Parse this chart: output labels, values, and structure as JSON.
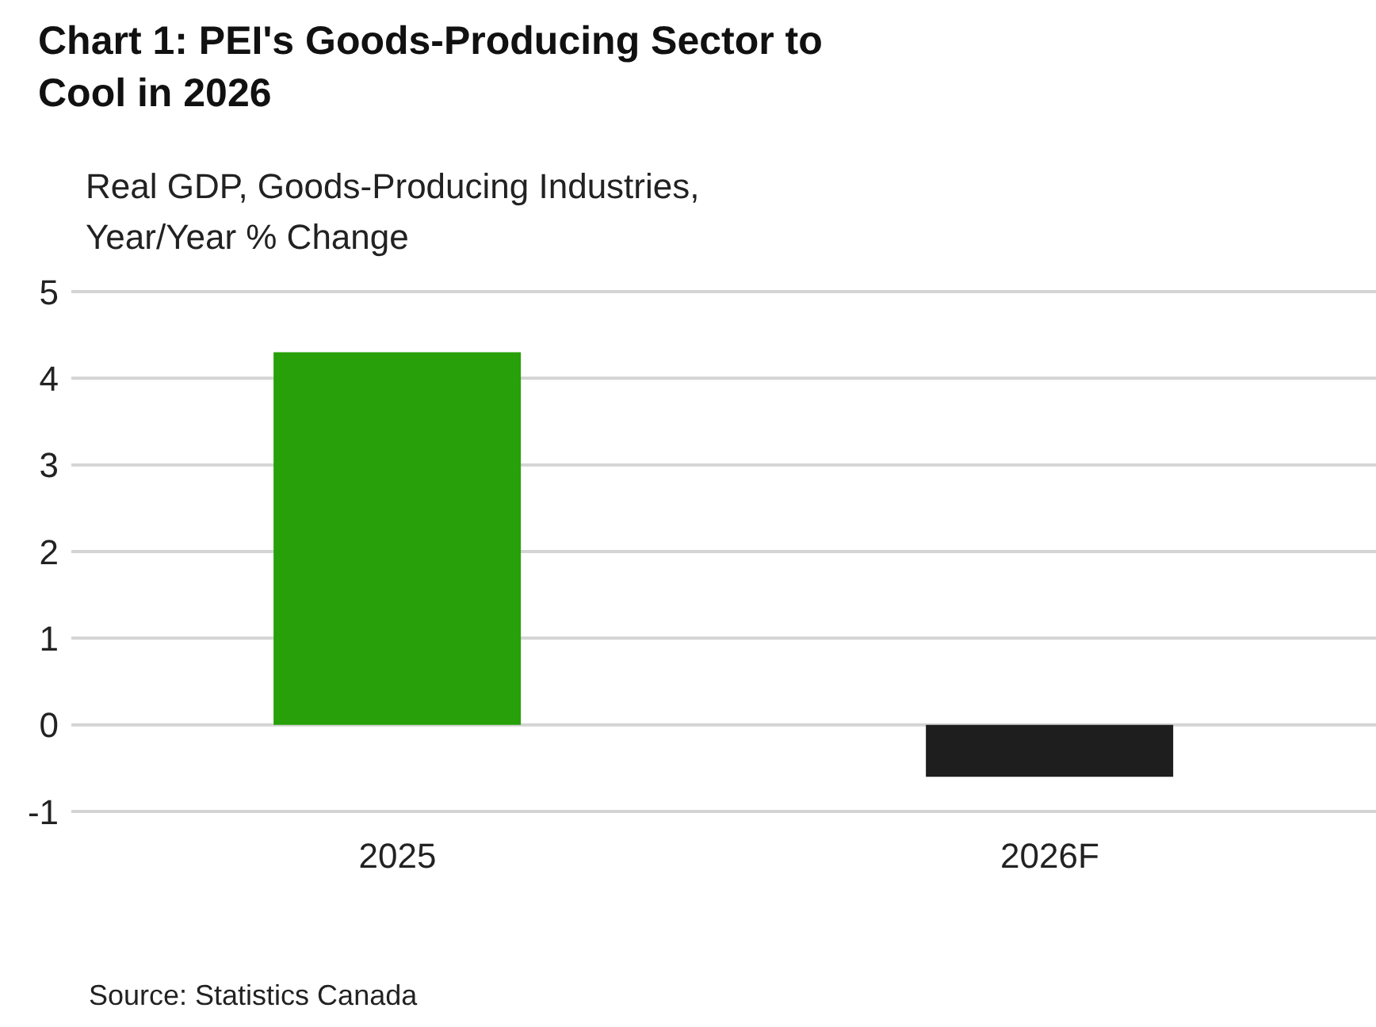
{
  "chart_data": {
    "type": "bar",
    "title": "Chart 1: PEI's Goods-Producing Sector to Cool in 2026",
    "ylabel": "Real GDP, Goods-Producing Industries, Year/Year % Change",
    "categories": [
      "2025",
      "2026F"
    ],
    "values": [
      4.3,
      -0.6
    ],
    "colors": [
      "#27a009",
      "#1e1e1e"
    ],
    "ylim": [
      -1,
      5
    ],
    "yticks": [
      -1,
      0,
      1,
      2,
      3,
      4,
      5
    ],
    "grid": "y",
    "annotations": [
      "Source: Statistics Canada"
    ]
  }
}
